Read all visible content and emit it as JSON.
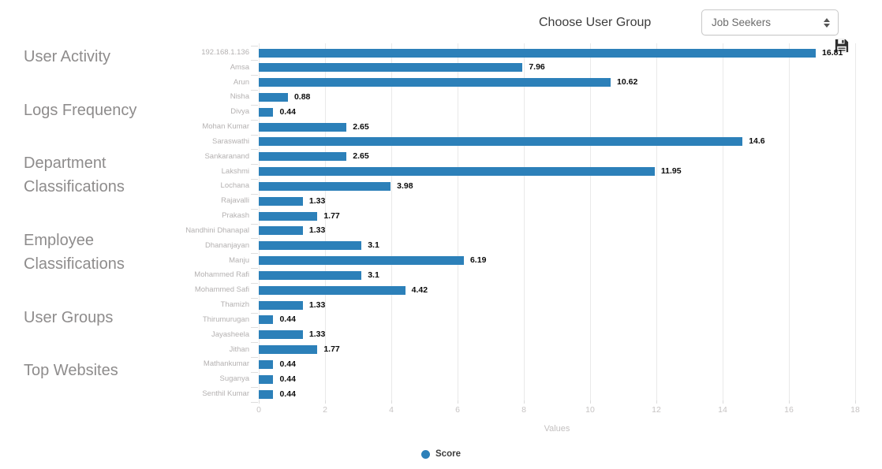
{
  "header": {
    "choose_user_group_label": "Choose User Group",
    "user_group_dropdown": {
      "value": "Job Seekers"
    }
  },
  "sidebar": {
    "items": [
      {
        "label": "User Activity"
      },
      {
        "label": "Logs Frequency"
      },
      {
        "label": "Department Classifications"
      },
      {
        "label": "Employee Classifications"
      },
      {
        "label": "User Groups"
      },
      {
        "label": "Top Websites"
      }
    ]
  },
  "icons": {
    "save_icon": "floppy-disk",
    "dropdown_arrows_icon": "up-down-arrows",
    "legend_marker_icon": "blue-dot"
  },
  "chart_data": {
    "type": "bar",
    "orientation": "horizontal",
    "xlabel": "Values",
    "xlim": [
      0,
      18
    ],
    "x_ticks": [
      0,
      2,
      4,
      6,
      8,
      10,
      12,
      14,
      16,
      18
    ],
    "grid": true,
    "bar_color": "#2c80b9",
    "legend_position": "bottom",
    "legend": {
      "label": "Score",
      "color": "#2c80b9"
    },
    "categories": [
      "192.168.1.136",
      "Amsa",
      "Arun",
      "Nisha",
      "Divya",
      "Mohan Kumar",
      "Saraswathi",
      "Sankaranand",
      "Lakshmi",
      "Lochana",
      "Rajavalli",
      "Prakash",
      "Nandhini Dhanapal",
      "Dhananjayan",
      "Manju",
      "Mohammed Rafi",
      "Mohammed Safi",
      "Thamizh",
      "Thirumurugan",
      "Jayasheela",
      "Jithan",
      "Mathankumar",
      "Suganya",
      "Senthil Kumar"
    ],
    "values": [
      16.81,
      7.96,
      10.62,
      0.88,
      0.44,
      2.65,
      14.6,
      2.65,
      11.95,
      3.98,
      1.33,
      1.77,
      1.33,
      3.1,
      6.19,
      3.1,
      4.42,
      1.33,
      0.44,
      1.33,
      1.77,
      0.44,
      0.44,
      0.44
    ],
    "value_labels": [
      "16.81",
      "7.96",
      "10.62",
      "0.88",
      "0.44",
      "2.65",
      "14.6",
      "2.65",
      "11.95",
      "3.98",
      "1.33",
      "1.77",
      "1.33",
      "3.1",
      "6.19",
      "3.1",
      "4.42",
      "1.33",
      "0.44",
      "1.33",
      "1.77",
      "0.44",
      "0.44",
      "0.44"
    ]
  }
}
